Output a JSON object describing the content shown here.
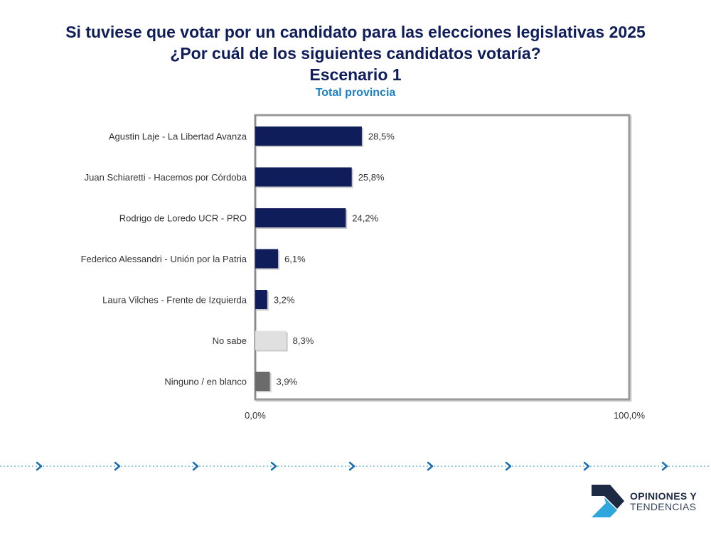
{
  "title": {
    "line1": "Si tuviese que votar por un candidato para las elecciones legislativas 2025",
    "line2": "¿Por cuál de los siguientes candidatos votaría?",
    "line3": "Escenario 1"
  },
  "subtitle": "Total provincia",
  "chart_data": {
    "type": "bar",
    "orientation": "horizontal",
    "categories": [
      "Agustin Laje - La Libertad Avanza",
      "Juan Schiaretti - Hacemos por Córdoba",
      "Rodrigo de Loredo UCR - PRO",
      "Federico Alessandri - Unión por la Patria",
      "Laura Vilches - Frente de Izquierda",
      "No sabe",
      "Ninguno / en blanco"
    ],
    "values": [
      28.5,
      25.8,
      24.2,
      6.1,
      3.2,
      8.3,
      3.9
    ],
    "value_labels": [
      "28,5%",
      "25,8%",
      "24,2%",
      "6,1%",
      "3,2%",
      "8,3%",
      "3,9%"
    ],
    "bar_colors": [
      "#0f1e5a",
      "#0f1e5a",
      "#0f1e5a",
      "#0f1e5a",
      "#0f1e5a",
      "#e0e0e0",
      "#6b6b6b"
    ],
    "xlim": [
      0,
      100
    ],
    "xtick_labels": [
      "0,0%",
      "100,0%"
    ],
    "xlabel": "",
    "ylabel": ""
  },
  "logo": {
    "line1": "OPINIONES Y",
    "line2": "TENDENCIAS"
  },
  "colors": {
    "navy": "#0f1e5a",
    "accent_blue": "#1b7fc4",
    "dotted_line": "#8ecbe6",
    "chevron": "#1b6fb0"
  }
}
